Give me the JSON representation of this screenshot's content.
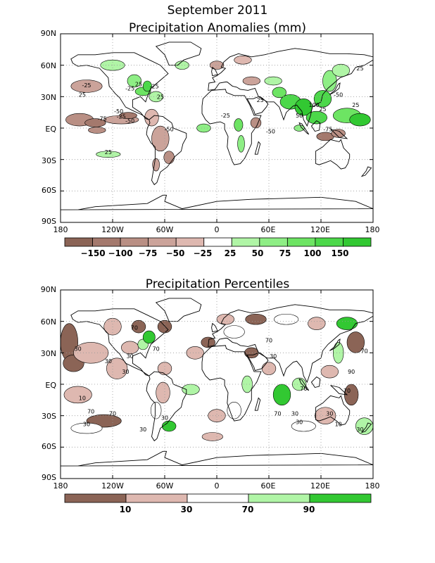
{
  "header": {
    "month_title": "September 2011"
  },
  "panels": [
    {
      "title": "Precipitation Anomalies (mm)",
      "lat_labels": [
        "90N",
        "60N",
        "30N",
        "EQ",
        "30S",
        "60S",
        "90S"
      ],
      "lon_labels": [
        "180",
        "120W",
        "60W",
        "0",
        "60E",
        "120E",
        "180"
      ],
      "legend": {
        "labels": [
          "−150",
          "−100",
          "−75",
          "−50",
          "−25",
          "25",
          "50",
          "75",
          "100",
          "150"
        ],
        "colors": [
          "#8b6456",
          "#a4796d",
          "#b98f84",
          "#cba39a",
          "#deb8b0",
          "#ffffff",
          "#b0f5a6",
          "#8eee85",
          "#6de463",
          "#4cd84a",
          "#32c832"
        ]
      },
      "contour_labels": [
        "25",
        "-25",
        "-75",
        "-50",
        "-25",
        "-50",
        "25",
        "-25",
        "25",
        "-25",
        "25",
        "-50",
        "-25",
        "25",
        "-50",
        "50",
        "100",
        "25",
        "-75",
        "-50",
        "25",
        "25"
      ]
    },
    {
      "title": "Precipitation Percentiles",
      "lat_labels": [
        "90N",
        "60N",
        "30N",
        "EQ",
        "30S",
        "60S",
        "90S"
      ],
      "lon_labels": [
        "180",
        "120W",
        "60W",
        "0",
        "60E",
        "120E",
        "180"
      ],
      "legend": {
        "labels": [
          "10",
          "30",
          "70",
          "90"
        ],
        "colors": [
          "#8b6456",
          "#deb8b0",
          "#ffffff",
          "#b0f5a6",
          "#32c832"
        ]
      },
      "contour_labels": [
        "30",
        "30",
        "70",
        "30",
        "30",
        "70",
        "10",
        "30",
        "70",
        "70",
        "30",
        "30",
        "70",
        "30",
        "70",
        "30",
        "70",
        "30",
        "30",
        "10",
        "70",
        "90",
        "30",
        "70"
      ]
    }
  ]
}
